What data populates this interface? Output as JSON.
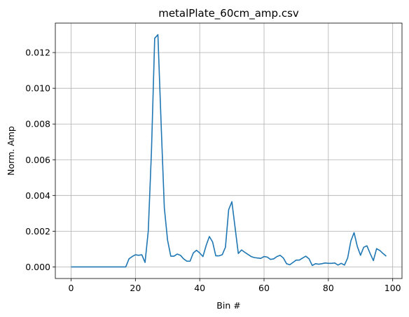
{
  "chart_data": {
    "type": "line",
    "title": "metalPlate_60cm_amp.csv",
    "xlabel": "Bin #",
    "ylabel": "Norm. Amp",
    "xlim": [
      -4.9,
      102.9
    ],
    "ylim": [
      -0.00065,
      0.01365
    ],
    "xticks": [
      0,
      20,
      40,
      60,
      80,
      100
    ],
    "xtick_labels": [
      "0",
      "20",
      "40",
      "60",
      "80",
      "100"
    ],
    "yticks": [
      0,
      0.002,
      0.004,
      0.006,
      0.008,
      0.01,
      0.012
    ],
    "ytick_labels": [
      "0.000",
      "0.002",
      "0.004",
      "0.006",
      "0.008",
      "0.010",
      "0.012"
    ],
    "grid": true,
    "series": [
      {
        "color": "#1f77b4",
        "x": [
          0,
          1,
          2,
          3,
          4,
          5,
          6,
          7,
          8,
          9,
          10,
          11,
          12,
          13,
          14,
          15,
          16,
          17,
          18,
          19,
          20,
          21,
          22,
          23,
          24,
          25,
          26,
          27,
          28,
          29,
          30,
          31,
          32,
          33,
          34,
          35,
          36,
          37,
          38,
          39,
          40,
          41,
          42,
          43,
          44,
          45,
          46,
          47,
          48,
          49,
          50,
          51,
          52,
          53,
          54,
          55,
          56,
          57,
          58,
          59,
          60,
          61,
          62,
          63,
          64,
          65,
          66,
          67,
          68,
          69,
          70,
          71,
          72,
          73,
          74,
          75,
          76,
          77,
          78,
          79,
          80,
          81,
          82,
          83,
          84,
          85,
          86,
          87,
          88,
          89,
          90,
          91,
          92,
          93,
          94,
          95,
          96,
          97,
          98
        ],
        "values": [
          0,
          0,
          0,
          0,
          0,
          0,
          0,
          0,
          0,
          0,
          0,
          0,
          0,
          0,
          0,
          0,
          0,
          0,
          0.00045,
          0.00058,
          0.00068,
          0.00065,
          0.00068,
          0.00025,
          0.002,
          0.0065,
          0.0128,
          0.013,
          0.008,
          0.0033,
          0.0015,
          0.0006,
          0.0006,
          0.00072,
          0.00065,
          0.00045,
          0.00032,
          0.00032,
          0.00078,
          0.00093,
          0.00078,
          0.00058,
          0.0012,
          0.0017,
          0.0014,
          0.00062,
          0.00062,
          0.00068,
          0.0011,
          0.0032,
          0.00365,
          0.0022,
          0.00075,
          0.00095,
          0.00082,
          0.0007,
          0.00058,
          0.00052,
          0.0005,
          0.00048,
          0.00058,
          0.00055,
          0.00042,
          0.00045,
          0.00058,
          0.00065,
          0.0005,
          0.00018,
          0.00012,
          0.00025,
          0.00038,
          0.00038,
          0.0005,
          0.0006,
          0.00045,
          8e-05,
          0.00018,
          0.00015,
          0.00018,
          0.00022,
          0.0002,
          0.0002,
          0.00022,
          0.0001,
          0.0002,
          0.0001,
          0.0005,
          0.00145,
          0.00192,
          0.00115,
          0.00065,
          0.0011,
          0.00118,
          0.00075,
          0.00035,
          0.00102,
          0.00092,
          0.00075,
          0.0006
        ]
      }
    ]
  }
}
